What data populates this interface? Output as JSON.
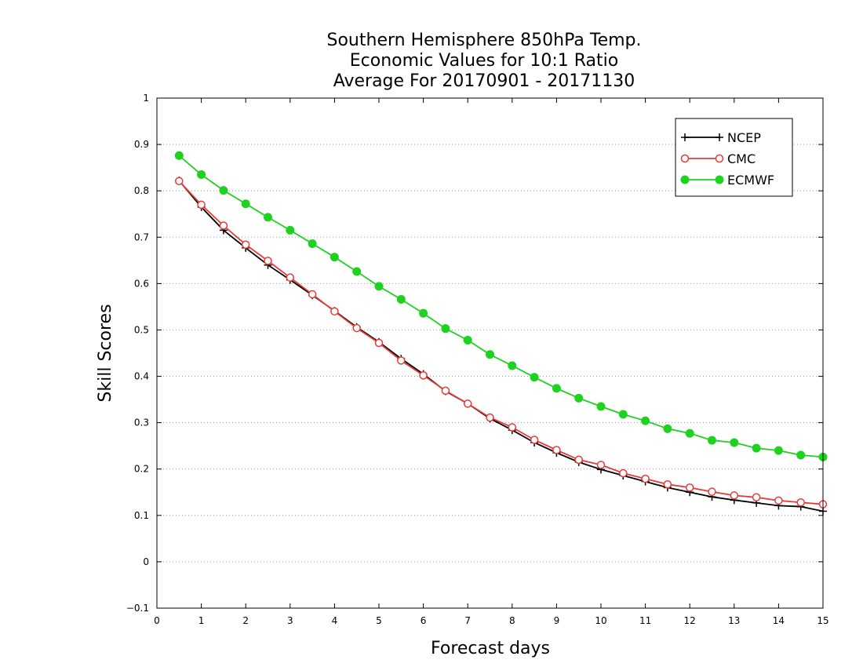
{
  "chart_data": {
    "type": "line",
    "title_lines": [
      "Southern Hemisphere 850hPa Temp.",
      "Economic Values for 10:1 Ratio",
      "Average For 20170901 - 20171130"
    ],
    "xlabel": "Forecast days",
    "ylabel": "Skill Scores",
    "xlim": [
      0,
      15
    ],
    "ylim": [
      -0.1,
      1
    ],
    "xticks": [
      0,
      1,
      2,
      3,
      4,
      5,
      6,
      7,
      8,
      9,
      10,
      11,
      12,
      13,
      14,
      15
    ],
    "yticks": [
      -0.1,
      0,
      0.1,
      0.2,
      0.3,
      0.4,
      0.5,
      0.6,
      0.7,
      0.8,
      0.9,
      1
    ],
    "ytick_labels": [
      "−0.1",
      "0",
      "0.1",
      "0.2",
      "0.3",
      "0.4",
      "0.5",
      "0.6",
      "0.7",
      "0.8",
      "0.9",
      "1"
    ],
    "grid": "horizontal dotted",
    "legend_position": "top-right",
    "x": [
      0.5,
      1,
      1.5,
      2,
      2.5,
      3,
      3.5,
      4,
      4.5,
      5,
      5.5,
      6,
      6.5,
      7,
      7.5,
      8,
      8.5,
      9,
      9.5,
      10,
      10.5,
      11,
      11.5,
      12,
      12.5,
      13,
      13.5,
      14,
      14.5,
      15
    ],
    "series": [
      {
        "name": "NCEP",
        "color": "#000000",
        "marker": "plus",
        "values": [
          0.822,
          0.765,
          0.715,
          0.677,
          0.64,
          0.608,
          0.575,
          0.541,
          0.506,
          0.474,
          0.438,
          0.405,
          0.368,
          0.341,
          0.309,
          0.284,
          0.257,
          0.235,
          0.215,
          0.199,
          0.186,
          0.173,
          0.16,
          0.15,
          0.14,
          0.133,
          0.127,
          0.121,
          0.119,
          0.109
        ]
      },
      {
        "name": "CMC",
        "color": "#e83a3a",
        "marker": "open-circle",
        "values": [
          0.821,
          0.77,
          0.725,
          0.684,
          0.649,
          0.613,
          0.577,
          0.54,
          0.504,
          0.472,
          0.434,
          0.402,
          0.369,
          0.341,
          0.311,
          0.29,
          0.263,
          0.241,
          0.22,
          0.209,
          0.191,
          0.179,
          0.167,
          0.16,
          0.151,
          0.143,
          0.139,
          0.132,
          0.128,
          0.124
        ]
      },
      {
        "name": "ECMWF",
        "color": "#1ed21e",
        "marker": "filled-circle",
        "values": [
          0.876,
          0.835,
          0.801,
          0.772,
          0.743,
          0.715,
          0.686,
          0.657,
          0.626,
          0.594,
          0.566,
          0.536,
          0.503,
          0.478,
          0.447,
          0.423,
          0.398,
          0.374,
          0.353,
          0.335,
          0.318,
          0.304,
          0.287,
          0.277,
          0.262,
          0.257,
          0.245,
          0.24,
          0.23,
          0.226
        ]
      }
    ]
  }
}
